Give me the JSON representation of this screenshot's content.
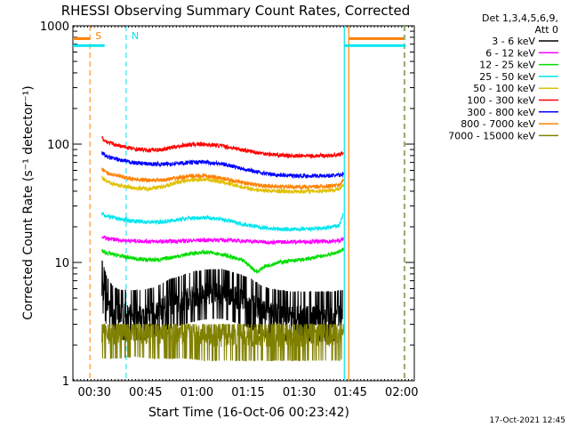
{
  "chart_data": {
    "type": "line",
    "title": "RHESSI Observing Summary Count Rates, Corrected",
    "xlabel": "Start Time (16-Oct-06 00:23:42)",
    "ylabel": "Corrected Count Rate (s⁻¹ detector⁻¹)",
    "y_scale": "log",
    "ylim": [
      1,
      1000
    ],
    "xlim_minutes": [
      0,
      100
    ],
    "x_tick_labels": [
      "00:30",
      "00:45",
      "01:00",
      "01:15",
      "01:30",
      "01:45",
      "02:00"
    ],
    "x_tick_minutes": [
      6.3,
      21.3,
      36.3,
      51.3,
      66.3,
      81.3,
      96.3
    ],
    "y_tick_labels": [
      "1",
      "10",
      "100",
      "1000"
    ],
    "y_tick_values": [
      1,
      10,
      100,
      1000
    ],
    "legend": {
      "position": "right",
      "header": [
        "Det 1,3,4,5,6,9,",
        "Att 0"
      ],
      "entries": [
        {
          "name": "3 - 6 keV",
          "color": "#000000"
        },
        {
          "name": "6 - 12 keV",
          "color": "#ff00ff"
        },
        {
          "name": "12 - 25 keV",
          "color": "#00dd00"
        },
        {
          "name": "25 - 50 keV",
          "color": "#00e5ee"
        },
        {
          "name": "50 - 100 keV",
          "color": "#e0c000"
        },
        {
          "name": "100 - 300 keV",
          "color": "#ff0000"
        },
        {
          "name": "300 - 800 keV",
          "color": "#0000ff"
        },
        {
          "name": "800 - 7000 keV",
          "color": "#ff8000"
        },
        {
          "name": "7000 - 15000 keV",
          "color": "#808000"
        }
      ]
    },
    "annotations": [
      {
        "text": "S",
        "x_minute": 5.0,
        "color": "#ff8000"
      },
      {
        "text": "N",
        "x_minute": 15.6,
        "color": "#00e5ee"
      }
    ],
    "markers": {
      "orange_dashed_x": [
        5.0,
        97.0
      ],
      "cyan_dashed_x": [
        15.6,
        97.3
      ],
      "cyan_solid_x": [
        79.5
      ],
      "orange_solid_x": [
        80.8
      ]
    },
    "segments": [
      {
        "color": "#ff8000",
        "x": [
          0,
          5.0
        ],
        "value": 780
      },
      {
        "color": "#00e5ee",
        "x": [
          0,
          9.3
        ],
        "value": 680
      },
      {
        "color": "#ff8000",
        "x": [
          80.8,
          97.0
        ],
        "value": 780
      },
      {
        "color": "#00e5ee",
        "x": [
          79.5,
          97.3
        ],
        "value": 680
      }
    ],
    "series": [
      {
        "name": "3 - 6 keV",
        "color": "#000000",
        "x": [
          8.5,
          10,
          12,
          14,
          16,
          20,
          24,
          28,
          32,
          36,
          40,
          44,
          48,
          52,
          56,
          60,
          64,
          68,
          72,
          76,
          79
        ],
        "values": [
          6.5,
          4.6,
          3.8,
          3.6,
          3.6,
          3.6,
          3.8,
          4.4,
          4.8,
          5.2,
          5.4,
          5.4,
          5.0,
          4.5,
          3.8,
          3.6,
          3.5,
          3.5,
          3.5,
          3.5,
          3.6
        ]
      },
      {
        "name": "6 - 12 keV",
        "color": "#ff00ff",
        "x": [
          8.5,
          10,
          14,
          18,
          22,
          26,
          30,
          34,
          38,
          42,
          46,
          50,
          54,
          58,
          62,
          66,
          70,
          74,
          78,
          79.3
        ],
        "values": [
          16.5,
          15.8,
          15.4,
          15.2,
          15.1,
          15.0,
          15.1,
          15.3,
          15.4,
          15.5,
          15.4,
          15.2,
          15.0,
          14.8,
          14.9,
          15.0,
          15.0,
          15.0,
          15.2,
          15.8
        ]
      },
      {
        "name": "12 - 25 keV",
        "color": "#00dd00",
        "x": [
          8.5,
          10,
          14,
          18,
          22,
          26,
          30,
          34,
          38,
          42,
          46,
          50,
          52,
          54,
          56,
          60,
          64,
          68,
          72,
          76,
          79.3
        ],
        "values": [
          12.5,
          12.0,
          11.3,
          10.8,
          10.5,
          10.6,
          11.2,
          11.8,
          12.2,
          12.0,
          11.2,
          10.3,
          9.2,
          8.3,
          9.2,
          10.0,
          10.3,
          10.6,
          11.2,
          11.8,
          12.8
        ]
      },
      {
        "name": "25 - 50 keV",
        "color": "#00e5ee",
        "x": [
          8.5,
          10,
          14,
          18,
          22,
          26,
          30,
          34,
          38,
          42,
          46,
          50,
          54,
          58,
          62,
          66,
          70,
          74,
          78,
          79.3
        ],
        "values": [
          26,
          24.5,
          23.2,
          22.3,
          21.9,
          22.0,
          22.8,
          23.6,
          24.0,
          23.5,
          22.4,
          21.0,
          20.0,
          19.3,
          19.0,
          19.0,
          19.2,
          19.5,
          20.5,
          26.0
        ]
      },
      {
        "name": "50 - 100 keV",
        "color": "#e0c000",
        "x": [
          8.5,
          10,
          14,
          18,
          22,
          26,
          30,
          34,
          38,
          42,
          46,
          50,
          54,
          58,
          62,
          66,
          70,
          74,
          78,
          79.3
        ],
        "values": [
          52,
          48,
          44.5,
          42.5,
          42.0,
          43.5,
          47.0,
          49.5,
          50.5,
          49.0,
          46.0,
          43.0,
          41.0,
          40.2,
          39.8,
          39.8,
          40.0,
          40.5,
          41.5,
          45.0
        ]
      },
      {
        "name": "100 - 300 keV",
        "color": "#ff0000",
        "x": [
          8.5,
          10,
          14,
          18,
          22,
          26,
          30,
          34,
          38,
          42,
          46,
          50,
          54,
          58,
          62,
          66,
          70,
          74,
          78,
          79.3
        ],
        "values": [
          113,
          104,
          96,
          91,
          89,
          90,
          95,
          99,
          100,
          98,
          94,
          89,
          85,
          82,
          80,
          79.5,
          79.5,
          80,
          81,
          85
        ]
      },
      {
        "name": "300 - 800 keV",
        "color": "#0000ff",
        "x": [
          8.5,
          10,
          14,
          18,
          22,
          26,
          30,
          34,
          38,
          42,
          46,
          50,
          54,
          58,
          62,
          66,
          70,
          74,
          78,
          79.3
        ],
        "values": [
          85,
          78,
          73,
          69.5,
          68,
          67.5,
          68.5,
          70,
          70.5,
          69,
          66,
          62,
          58,
          55.5,
          54.5,
          54,
          54,
          54,
          54.5,
          56
        ]
      },
      {
        "name": "800 - 7000 keV",
        "color": "#ff8000",
        "x": [
          8.5,
          10,
          14,
          18,
          22,
          26,
          30,
          34,
          38,
          42,
          46,
          50,
          54,
          58,
          62,
          66,
          70,
          74,
          78,
          79.3
        ],
        "values": [
          62,
          57,
          53,
          50.5,
          49.5,
          49.5,
          51.5,
          53.5,
          54,
          52.5,
          50,
          47,
          45,
          44,
          43.5,
          43.5,
          43.5,
          44,
          45,
          50
        ]
      },
      {
        "name": "7000 - 15000 keV",
        "color": "#808000",
        "x": [
          8.5,
          10,
          14,
          18,
          22,
          26,
          30,
          34,
          38,
          42,
          46,
          50,
          54,
          58,
          62,
          66,
          70,
          74,
          78,
          79.3
        ],
        "values": [
          2.5,
          2.5,
          2.5,
          2.6,
          2.5,
          2.5,
          2.5,
          2.5,
          2.4,
          2.4,
          2.4,
          2.4,
          2.4,
          2.4,
          2.4,
          2.4,
          2.4,
          2.4,
          2.4,
          2.5
        ]
      }
    ]
  },
  "footer": {
    "generated": "17-Oct-2021 12:45"
  }
}
